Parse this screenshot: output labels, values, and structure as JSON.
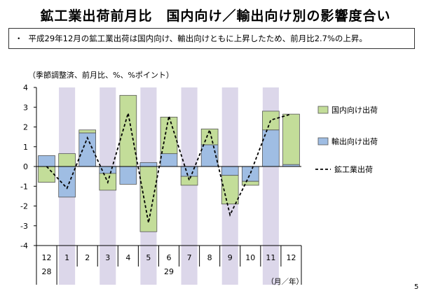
{
  "page": {
    "title": "鉱工業出荷前月比　国内向け／輸出向け別の影響度合い",
    "summary": "平成29年12月の鉱工業出荷は国内向け、輸出向けともに上昇したため、前月比2.7%の上昇。",
    "summary_bullet": "・",
    "page_number": "5"
  },
  "chart_data": {
    "type": "bar",
    "subtype": "stacked bar with line",
    "unit_note": "（季節調整済、前月比、%、%ポイント）",
    "xunit": "（月／年）",
    "categories": [
      "12",
      "1",
      "2",
      "3",
      "4",
      "5",
      "6",
      "7",
      "8",
      "9",
      "10",
      "11",
      "12"
    ],
    "year_labels": [
      {
        "label": "28",
        "category": "12"
      },
      {
        "label": "29",
        "category": "6"
      }
    ],
    "ylim": [
      -4,
      4
    ],
    "yticks": [
      -4,
      -3,
      -2,
      -1,
      0,
      1,
      2,
      3,
      4
    ],
    "grid": false,
    "shaded_categories": [
      "1",
      "3",
      "5",
      "7",
      "9",
      "11"
    ],
    "legend_position": "right",
    "series": [
      {
        "name": "国内向け出荷",
        "kind": "bar",
        "color": "#c3dd99",
        "values": [
          -0.8,
          0.65,
          0.15,
          -0.85,
          3.6,
          -3.3,
          1.85,
          -0.45,
          0.8,
          -1.45,
          -0.2,
          0.95,
          2.55
        ]
      },
      {
        "name": "輸出向け出荷",
        "kind": "bar",
        "color": "#9fbde3",
        "values": [
          0.55,
          -1.55,
          1.7,
          -0.35,
          -0.9,
          0.2,
          0.65,
          -0.5,
          1.1,
          -0.45,
          -0.75,
          1.85,
          0.1
        ]
      },
      {
        "name": "鉱工業出荷",
        "kind": "line",
        "style": "dashed",
        "color": "#000000",
        "values": [
          0.0,
          -1.1,
          1.45,
          -0.8,
          2.7,
          -2.85,
          2.55,
          -0.7,
          1.85,
          -2.45,
          -0.35,
          2.35,
          2.65
        ]
      }
    ]
  }
}
